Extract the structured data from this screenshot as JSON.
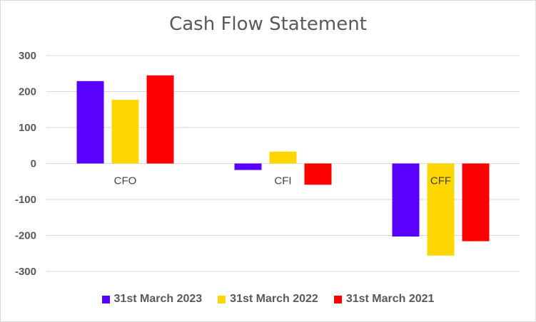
{
  "chart_data": {
    "type": "bar",
    "title": "Cash Flow Statement",
    "categories": [
      "CFO",
      "CFI",
      "CFF"
    ],
    "series": [
      {
        "name": "31st March 2023",
        "color": "#5a00ff",
        "values": [
          229,
          -18,
          -203
        ]
      },
      {
        "name": "31st March 2022",
        "color": "#ffd700",
        "values": [
          177,
          33,
          -256
        ]
      },
      {
        "name": "31st March 2021",
        "color": "#ff0000",
        "values": [
          245,
          -59,
          -216
        ]
      }
    ],
    "yticks": [
      "300",
      "200",
      "100",
      "0",
      "-100",
      "-200",
      "-300"
    ],
    "ylim": [
      -300,
      300
    ],
    "grid": true,
    "legend_position": "bottom",
    "xlabel": "",
    "ylabel": ""
  }
}
